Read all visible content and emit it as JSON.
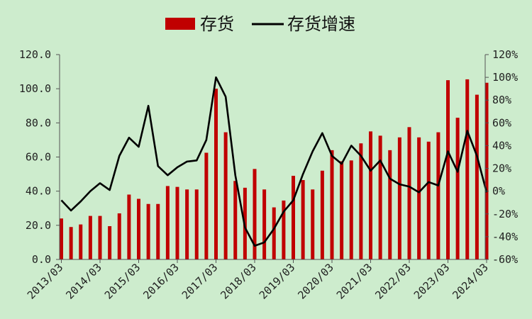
{
  "chart_data": {
    "type": "bar+line",
    "legend": [
      {
        "label": "存货",
        "kind": "bar",
        "color": "#c00000"
      },
      {
        "label": "存货增速",
        "kind": "line",
        "color": "#000000"
      }
    ],
    "legend_position": "top-center",
    "grid": false,
    "x_labels": [
      "2013/03",
      "2014/03",
      "2015/03",
      "2016/03",
      "2017/03",
      "2018/03",
      "2019/03",
      "2020/03",
      "2021/03",
      "2022/03",
      "2023/03",
      "2024/03"
    ],
    "left_axis": {
      "min": 0,
      "max": 120,
      "step": 20,
      "tick_labels": [
        "0.0",
        "20.0",
        "40.0",
        "60.0",
        "80.0",
        "100.0",
        "120.0"
      ]
    },
    "right_axis": {
      "min": -60,
      "max": 120,
      "step": 20,
      "tick_labels": [
        "-60%",
        "-40%",
        "-20%",
        "0%",
        "20%",
        "40%",
        "60%",
        "80%",
        "100%",
        "120%"
      ]
    },
    "series": [
      {
        "name": "存货",
        "type": "bar",
        "axis": "left",
        "color": "#c00000",
        "values": [
          24,
          19,
          20.5,
          25.5,
          25.5,
          19.5,
          27,
          38,
          35.5,
          32.5,
          32.5,
          43,
          42.5,
          41,
          41,
          62.5,
          100,
          74.5,
          46,
          42,
          53,
          41,
          30.5,
          34.5,
          49,
          46.5,
          41,
          52,
          64,
          57.5,
          58,
          68,
          75,
          72.5,
          64,
          71.5,
          77.5,
          71.5,
          69,
          74.5,
          105,
          83,
          105.5,
          96.5,
          103.5
        ]
      },
      {
        "name": "存货增速",
        "type": "line",
        "axis": "right",
        "color": "#000000",
        "values": [
          -8,
          -17,
          -9,
          0,
          7,
          1,
          31,
          47,
          39,
          75,
          22,
          14,
          21,
          26,
          27,
          45,
          100,
          83,
          14,
          -32,
          -48,
          -45,
          -33,
          -18,
          -8,
          15,
          35,
          51,
          31,
          24,
          40,
          31,
          18,
          27,
          11,
          6,
          4,
          -1,
          8,
          5,
          35,
          17,
          53,
          31,
          -1
        ]
      }
    ]
  }
}
